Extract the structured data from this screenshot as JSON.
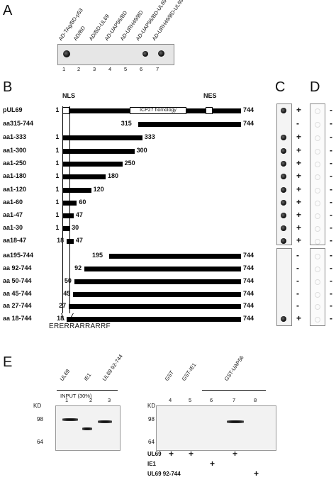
{
  "panelA": {
    "letter": "A",
    "lane_labels": [
      "AD-TAg/BD-p53",
      "AD/BD",
      "AD/BD-UL69",
      "AD-UAP56/BD",
      "AD-URH49/BD",
      "AD-UAP56/BD-UL69",
      "AD-URH49/BD-UL69"
    ],
    "lane_numbers": [
      "1",
      "2",
      "3",
      "4",
      "5",
      "6",
      "7"
    ]
  },
  "panelB": {
    "letter": "B",
    "nls_label": "NLS",
    "nes_label": "NES",
    "homology_label": "ICP27 homology",
    "motif": "ERERRARRARRF",
    "rows": [
      {
        "name": "pUL69",
        "start": "1",
        "end": "744"
      },
      {
        "name": "aa315-744",
        "start": "315",
        "end": "744"
      },
      {
        "name": "aa1-333",
        "start": "1",
        "end": "333"
      },
      {
        "name": "aa1-300",
        "start": "1",
        "end": "300"
      },
      {
        "name": "aa1-250",
        "start": "1",
        "end": "250"
      },
      {
        "name": "aa1-180",
        "start": "1",
        "end": "180"
      },
      {
        "name": "aa1-120",
        "start": "1",
        "end": "120"
      },
      {
        "name": "aa1-60",
        "start": "1",
        "end": "60"
      },
      {
        "name": "aa1-47",
        "start": "1",
        "end": "47"
      },
      {
        "name": "aa1-30",
        "start": "1",
        "end": "30"
      },
      {
        "name": "aa18-47",
        "start": "18",
        "end": "47"
      },
      {
        "name": "aa195-744",
        "start": "195",
        "end": "744"
      },
      {
        "name": "aa 92-744",
        "start": "92",
        "end": "744"
      },
      {
        "name": "aa 50-744",
        "start": "50",
        "end": "744"
      },
      {
        "name": "aa 45-744",
        "start": "45",
        "end": "744"
      },
      {
        "name": "aa 27-744",
        "start": "27",
        "end": "744"
      },
      {
        "name": "aa 18-744",
        "start": "18",
        "end": "744"
      }
    ]
  },
  "panelC": {
    "letter": "C",
    "signs": [
      "+",
      "-",
      "+",
      "+",
      "+",
      "+",
      "+",
      "+",
      "+",
      "+",
      "+",
      "-",
      "-",
      "-",
      "-",
      "-",
      "+"
    ]
  },
  "panelD": {
    "letter": "D",
    "signs": [
      "-",
      "-",
      "-",
      "-",
      "-",
      "-",
      "-",
      "-",
      "-",
      "-",
      "-",
      "-",
      "-",
      "-",
      "-",
      "-",
      "-"
    ]
  },
  "panelE": {
    "letter": "E",
    "left_lanes": [
      "UL69",
      "IE1",
      "UL69 92-744"
    ],
    "input_label": "INPUT (30%)",
    "left_numbers": [
      "1",
      "2",
      "3"
    ],
    "right_lanes": [
      "GST",
      "GST-IE1",
      "GST-UAP56"
    ],
    "right_numbers": [
      "4",
      "5",
      "6",
      "7",
      "8"
    ],
    "kd": "KD",
    "markers": [
      "98",
      "64"
    ],
    "bottom_rows": [
      {
        "label": "UL69",
        "marks": [
          "+",
          "+",
          "",
          "+",
          ""
        ]
      },
      {
        "label": "IE1",
        "marks": [
          "",
          "",
          "+",
          "",
          ""
        ]
      },
      {
        "label": "UL69 92-744",
        "marks": [
          "",
          "",
          "",
          "",
          "+"
        ]
      }
    ]
  }
}
